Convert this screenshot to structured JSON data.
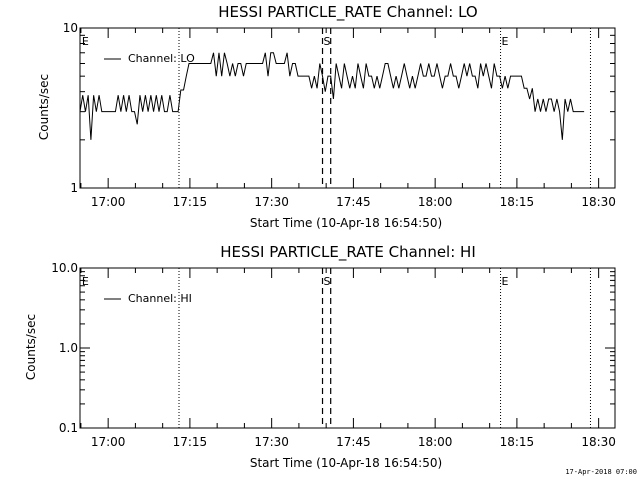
{
  "footer": {
    "timestamp": "17-Apr-2018 07:00"
  },
  "chart_data": [
    {
      "type": "line",
      "title": "HESSI PARTICLE_RATE Channel: LO",
      "ylabel": "Counts/sec",
      "xlabel": "Start Time (10-Apr-18 16:54:50)",
      "y_scale": "log",
      "ylim": [
        1,
        10
      ],
      "y_ticks": [
        {
          "value": 1,
          "label": "1"
        },
        {
          "value": 10,
          "label": "10"
        }
      ],
      "xlim": [
        "16:54:50",
        "18:33:00"
      ],
      "x_ticks": [
        {
          "time": "17:00",
          "label": "17:00"
        },
        {
          "time": "17:15",
          "label": "17:15"
        },
        {
          "time": "17:30",
          "label": "17:30"
        },
        {
          "time": "17:45",
          "label": "17:45"
        },
        {
          "time": "18:00",
          "label": "18:00"
        },
        {
          "time": "18:15",
          "label": "18:15"
        },
        {
          "time": "18:30",
          "label": "18:30"
        }
      ],
      "legend": {
        "label": "Channel: LO",
        "position": "top-left"
      },
      "markers": [
        {
          "time": "16:55:00",
          "label": "E",
          "style": "none"
        },
        {
          "time": "17:13:00",
          "label": "",
          "style": "dotted"
        },
        {
          "time": "17:39:20",
          "label": "S",
          "style": "dashed"
        },
        {
          "time": "17:40:50",
          "label": "",
          "style": "dashed"
        },
        {
          "time": "18:12:00",
          "label": "E",
          "style": "dotted"
        },
        {
          "time": "18:28:30",
          "label": "",
          "style": "dotted"
        }
      ],
      "series": [
        {
          "name": "Channel: LO",
          "points": [
            [
              "16:54:50",
              3.0
            ],
            [
              "16:55:20",
              3.8
            ],
            [
              "16:55:50",
              3.0
            ],
            [
              "16:56:20",
              3.8
            ],
            [
              "16:56:50",
              2.0
            ],
            [
              "16:57:20",
              3.8
            ],
            [
              "16:57:50",
              3.0
            ],
            [
              "16:58:20",
              3.8
            ],
            [
              "16:58:50",
              3.0
            ],
            [
              "16:59:20",
              3.0
            ],
            [
              "16:59:50",
              3.0
            ],
            [
              "17:00:20",
              3.0
            ],
            [
              "17:00:50",
              3.0
            ],
            [
              "17:01:20",
              3.0
            ],
            [
              "17:01:50",
              3.8
            ],
            [
              "17:02:20",
              3.0
            ],
            [
              "17:02:50",
              3.8
            ],
            [
              "17:03:20",
              3.0
            ],
            [
              "17:03:50",
              3.8
            ],
            [
              "17:04:20",
              3.0
            ],
            [
              "17:04:50",
              3.0
            ],
            [
              "17:05:20",
              2.5
            ],
            [
              "17:05:50",
              3.8
            ],
            [
              "17:06:20",
              3.0
            ],
            [
              "17:06:50",
              3.8
            ],
            [
              "17:07:20",
              3.0
            ],
            [
              "17:07:50",
              3.8
            ],
            [
              "17:08:20",
              3.0
            ],
            [
              "17:08:50",
              3.8
            ],
            [
              "17:09:20",
              3.0
            ],
            [
              "17:09:50",
              3.8
            ],
            [
              "17:10:20",
              3.0
            ],
            [
              "17:10:50",
              3.0
            ],
            [
              "17:11:20",
              3.8
            ],
            [
              "17:11:50",
              3.0
            ],
            [
              "17:12:20",
              3.0
            ],
            [
              "17:12:50",
              3.0
            ],
            [
              "17:13:20",
              4.1
            ],
            [
              "17:13:50",
              4.1
            ],
            [
              "17:14:20",
              5.0
            ],
            [
              "17:14:50",
              6.0
            ],
            [
              "17:15:20",
              6.0
            ],
            [
              "17:15:50",
              6.0
            ],
            [
              "17:16:20",
              6.0
            ],
            [
              "17:16:50",
              6.0
            ],
            [
              "17:17:20",
              6.0
            ],
            [
              "17:17:50",
              6.0
            ],
            [
              "17:18:20",
              6.0
            ],
            [
              "17:18:50",
              6.0
            ],
            [
              "17:19:20",
              7.0
            ],
            [
              "17:19:50",
              5.0
            ],
            [
              "17:20:20",
              7.0
            ],
            [
              "17:20:50",
              5.0
            ],
            [
              "17:21:20",
              7.0
            ],
            [
              "17:21:50",
              6.0
            ],
            [
              "17:22:20",
              5.0
            ],
            [
              "17:22:50",
              6.0
            ],
            [
              "17:23:20",
              5.0
            ],
            [
              "17:23:50",
              6.0
            ],
            [
              "17:24:20",
              6.0
            ],
            [
              "17:24:50",
              5.0
            ],
            [
              "17:25:20",
              6.0
            ],
            [
              "17:25:50",
              6.0
            ],
            [
              "17:26:20",
              6.0
            ],
            [
              "17:26:50",
              6.0
            ],
            [
              "17:27:20",
              6.0
            ],
            [
              "17:27:50",
              6.0
            ],
            [
              "17:28:20",
              6.0
            ],
            [
              "17:28:50",
              7.0
            ],
            [
              "17:29:20",
              5.0
            ],
            [
              "17:29:50",
              7.0
            ],
            [
              "17:30:20",
              7.0
            ],
            [
              "17:30:50",
              6.0
            ],
            [
              "17:31:20",
              6.0
            ],
            [
              "17:31:50",
              6.0
            ],
            [
              "17:32:20",
              6.0
            ],
            [
              "17:32:50",
              7.0
            ],
            [
              "17:33:20",
              5.0
            ],
            [
              "17:33:50",
              6.0
            ],
            [
              "17:34:20",
              6.0
            ],
            [
              "17:34:50",
              5.0
            ],
            [
              "17:35:20",
              5.0
            ],
            [
              "17:35:50",
              5.0
            ],
            [
              "17:36:20",
              5.0
            ],
            [
              "17:36:50",
              5.0
            ],
            [
              "17:37:20",
              4.2
            ],
            [
              "17:37:50",
              5.0
            ],
            [
              "17:38:20",
              4.2
            ],
            [
              "17:38:50",
              6.0
            ],
            [
              "17:39:20",
              5.0
            ],
            [
              "17:39:50",
              4.0
            ],
            [
              "17:40:20",
              5.0
            ],
            [
              "17:40:50",
              5.0
            ],
            [
              "17:41:20",
              3.6
            ],
            [
              "17:41:50",
              6.0
            ],
            [
              "17:42:20",
              5.0
            ],
            [
              "17:42:50",
              4.2
            ],
            [
              "17:43:20",
              6.0
            ],
            [
              "17:43:50",
              5.0
            ],
            [
              "17:44:20",
              4.2
            ],
            [
              "17:44:50",
              5.0
            ],
            [
              "17:45:20",
              4.2
            ],
            [
              "17:45:50",
              6.0
            ],
            [
              "17:46:20",
              5.0
            ],
            [
              "17:46:50",
              4.2
            ],
            [
              "17:47:20",
              6.0
            ],
            [
              "17:47:50",
              5.0
            ],
            [
              "17:48:20",
              5.0
            ],
            [
              "17:48:50",
              4.2
            ],
            [
              "17:49:20",
              5.0
            ],
            [
              "17:49:50",
              4.2
            ],
            [
              "17:50:20",
              5.0
            ],
            [
              "17:50:50",
              6.0
            ],
            [
              "17:51:20",
              6.0
            ],
            [
              "17:51:50",
              5.0
            ],
            [
              "17:52:20",
              4.2
            ],
            [
              "17:52:50",
              5.0
            ],
            [
              "17:53:20",
              4.2
            ],
            [
              "17:53:50",
              5.0
            ],
            [
              "17:54:20",
              6.0
            ],
            [
              "17:54:50",
              5.0
            ],
            [
              "17:55:20",
              4.2
            ],
            [
              "17:55:50",
              5.0
            ],
            [
              "17:56:20",
              4.2
            ],
            [
              "17:56:50",
              5.0
            ],
            [
              "17:57:20",
              6.0
            ],
            [
              "17:57:50",
              5.0
            ],
            [
              "17:58:20",
              5.0
            ],
            [
              "17:58:50",
              6.0
            ],
            [
              "17:59:20",
              5.0
            ],
            [
              "17:59:50",
              5.0
            ],
            [
              "18:00:20",
              6.0
            ],
            [
              "18:00:50",
              5.0
            ],
            [
              "18:01:20",
              4.2
            ],
            [
              "18:01:50",
              5.0
            ],
            [
              "18:02:20",
              5.0
            ],
            [
              "18:02:50",
              6.0
            ],
            [
              "18:03:20",
              5.0
            ],
            [
              "18:03:50",
              5.0
            ],
            [
              "18:04:20",
              4.2
            ],
            [
              "18:04:50",
              5.0
            ],
            [
              "18:05:20",
              6.0
            ],
            [
              "18:05:50",
              5.0
            ],
            [
              "18:06:20",
              6.0
            ],
            [
              "18:06:50",
              5.0
            ],
            [
              "18:07:20",
              5.0
            ],
            [
              "18:07:50",
              4.2
            ],
            [
              "18:08:20",
              6.0
            ],
            [
              "18:08:50",
              5.0
            ],
            [
              "18:09:20",
              6.0
            ],
            [
              "18:09:50",
              5.0
            ],
            [
              "18:10:20",
              4.2
            ],
            [
              "18:10:50",
              6.0
            ],
            [
              "18:11:20",
              5.0
            ],
            [
              "18:11:50",
              5.0
            ],
            [
              "18:12:20",
              4.2
            ],
            [
              "18:12:50",
              5.0
            ],
            [
              "18:13:20",
              4.2
            ],
            [
              "18:13:50",
              5.0
            ],
            [
              "18:14:20",
              5.0
            ],
            [
              "18:14:50",
              5.0
            ],
            [
              "18:15:20",
              5.0
            ],
            [
              "18:15:50",
              5.0
            ],
            [
              "18:16:20",
              4.2
            ],
            [
              "18:16:50",
              4.2
            ],
            [
              "18:17:20",
              3.6
            ],
            [
              "18:17:50",
              4.2
            ],
            [
              "18:18:20",
              3.0
            ],
            [
              "18:18:50",
              3.6
            ],
            [
              "18:19:20",
              3.0
            ],
            [
              "18:19:50",
              3.6
            ],
            [
              "18:20:20",
              3.0
            ],
            [
              "18:20:50",
              3.6
            ],
            [
              "18:21:20",
              3.6
            ],
            [
              "18:21:50",
              3.0
            ],
            [
              "18:22:20",
              3.6
            ],
            [
              "18:22:50",
              3.0
            ],
            [
              "18:23:20",
              2.0
            ],
            [
              "18:23:50",
              3.6
            ],
            [
              "18:24:20",
              3.0
            ],
            [
              "18:24:50",
              3.6
            ],
            [
              "18:25:20",
              3.0
            ],
            [
              "18:25:50",
              3.0
            ],
            [
              "18:26:20",
              3.0
            ],
            [
              "18:26:50",
              3.0
            ],
            [
              "18:27:20",
              3.0
            ]
          ]
        }
      ]
    },
    {
      "type": "line",
      "title": "HESSI PARTICLE_RATE Channel: HI",
      "ylabel": "Counts/sec",
      "xlabel": "Start Time (10-Apr-18 16:54:50)",
      "y_scale": "log",
      "ylim": [
        0.1,
        10
      ],
      "y_ticks": [
        {
          "value": 0.1,
          "label": "0.1"
        },
        {
          "value": 1,
          "label": "1.0"
        },
        {
          "value": 10,
          "label": "10.0"
        }
      ],
      "xlim": [
        "16:54:50",
        "18:33:00"
      ],
      "x_ticks": [
        {
          "time": "17:00",
          "label": "17:00"
        },
        {
          "time": "17:15",
          "label": "17:15"
        },
        {
          "time": "17:30",
          "label": "17:30"
        },
        {
          "time": "17:45",
          "label": "17:45"
        },
        {
          "time": "18:00",
          "label": "18:00"
        },
        {
          "time": "18:15",
          "label": "18:15"
        },
        {
          "time": "18:30",
          "label": "18:30"
        }
      ],
      "legend": {
        "label": "Channel: HI",
        "position": "top-left"
      },
      "markers": [
        {
          "time": "16:55:00",
          "label": "E",
          "style": "none"
        },
        {
          "time": "17:13:00",
          "label": "",
          "style": "dotted"
        },
        {
          "time": "17:39:20",
          "label": "S",
          "style": "dashed"
        },
        {
          "time": "17:40:50",
          "label": "",
          "style": "dashed"
        },
        {
          "time": "18:12:00",
          "label": "E",
          "style": "dotted"
        },
        {
          "time": "18:28:30",
          "label": "",
          "style": "dotted"
        }
      ],
      "series": [
        {
          "name": "Channel: HI",
          "points": []
        }
      ]
    }
  ]
}
